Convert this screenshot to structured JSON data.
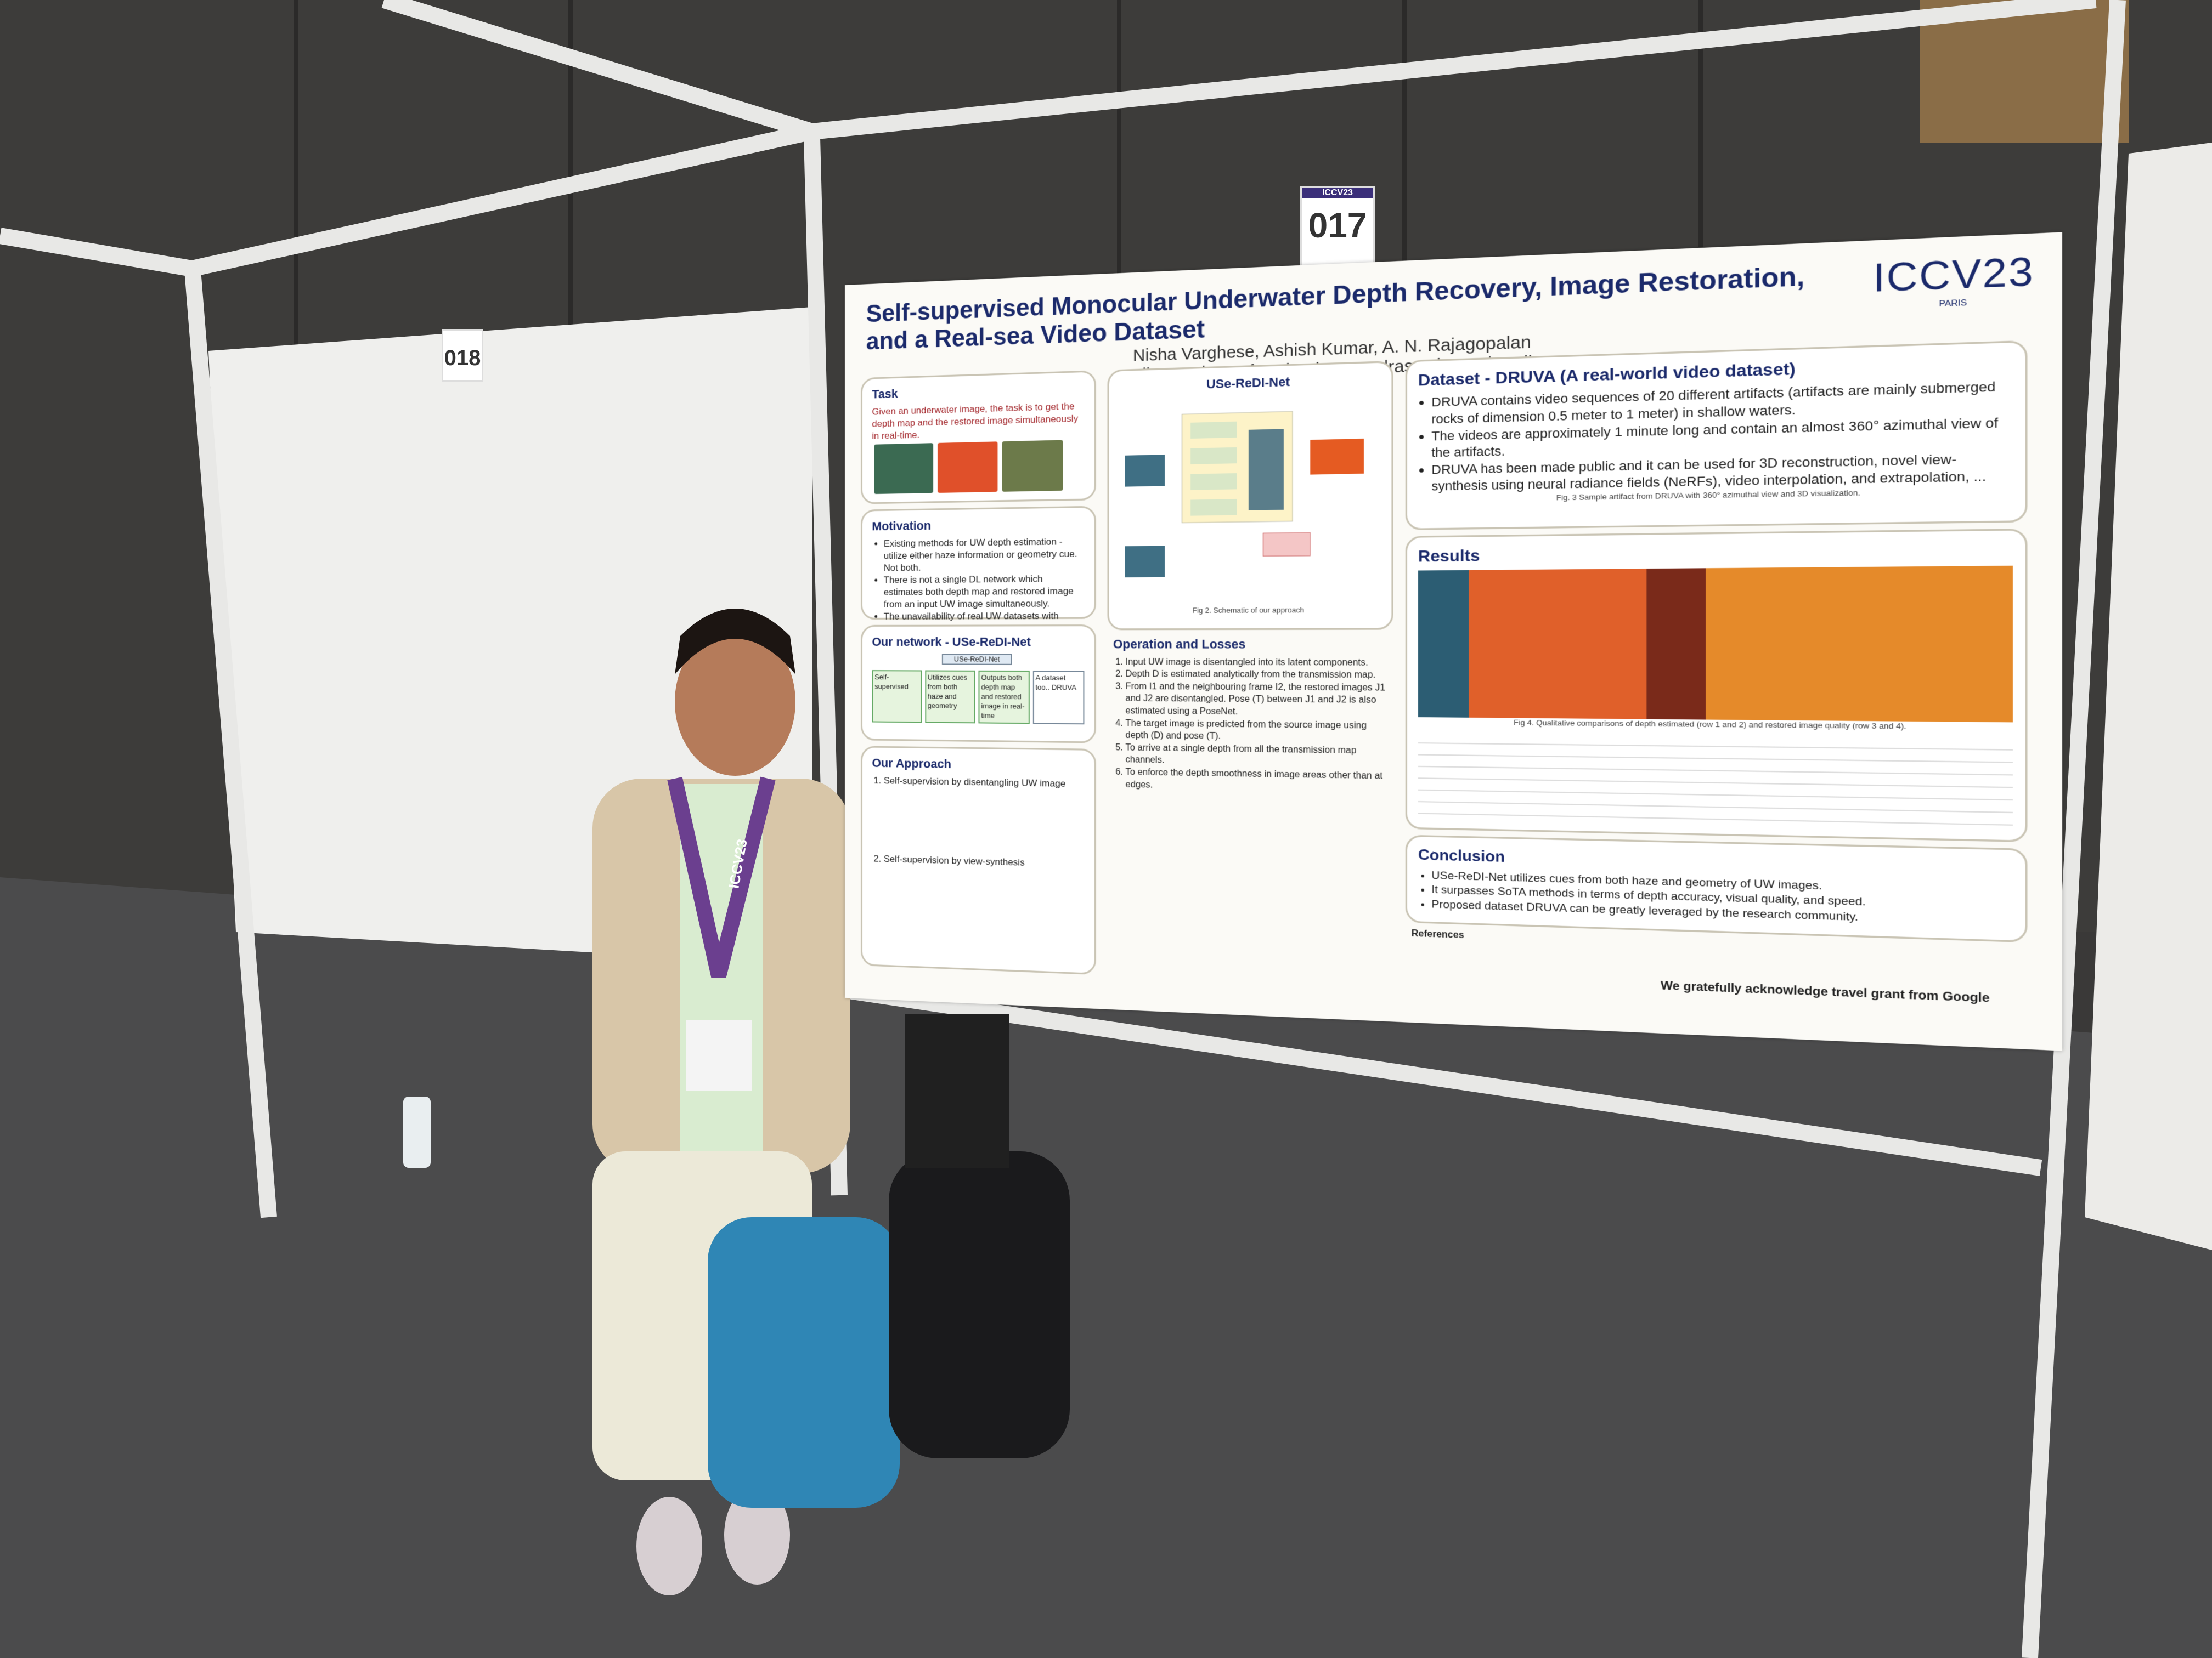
{
  "booths": {
    "left": "018",
    "right": "017",
    "tag": "ICCV23"
  },
  "poster": {
    "title": "Self-supervised Monocular Underwater Depth Recovery, Image Restoration, and a Real-sea Video Dataset",
    "authors": "Nisha Varghese, Ashish Kumar, A. N. Rajagopalan",
    "affiliation": "Indian Institute of Technology Madras, Chennai, India",
    "conference": "ICCV23",
    "city": "PARIS",
    "task": {
      "heading": "Task",
      "text": "Given an underwater image, the task is to get the depth map and the restored image simultaneously in real-time."
    },
    "motivation": {
      "heading": "Motivation",
      "items": [
        "Existing methods for UW depth estimation - utilize either haze information or geometry cue. Not both.",
        "There is not a single DL network which estimates both depth map and restored image from an input UW image simultaneously.",
        "The unavailability of real UW datasets with actual ground truth continues to pose challenges for supervised learning."
      ]
    },
    "network": {
      "heading": "Our network - USe-ReDI-Net",
      "nodes": [
        "USe-ReDI-Net",
        "Self-supervised",
        "Utilizes cues from both haze and geometry",
        "Outputs both depth map and restored image in real-time",
        "A dataset too.. DRUVA"
      ]
    },
    "approach": {
      "heading": "Our Approach",
      "items": [
        "Self-supervision by disentangling UW image",
        "Self-supervision by view-synthesis"
      ]
    },
    "diagram": {
      "heading": "USe-ReDI-Net",
      "caption": "Fig 2. Schematic of our approach"
    },
    "operation": {
      "heading": "Operation and Losses",
      "items": [
        "Input UW image is disentangled into its latent components.",
        "Depth D is estimated analytically from the transmission map.",
        "From I1 and the neighbouring frame I2, the restored images J1 and J2 are disentangled. Pose (T) between J1 and J2 is also estimated using a PoseNet.",
        "The target image is predicted from the source image using depth (D) and pose (T).",
        "To arrive at a single depth from all the transmission map channels.",
        "To enforce the depth smoothness in image areas other than at edges."
      ]
    },
    "dataset": {
      "heading": "Dataset - DRUVA (A real-world video dataset)",
      "items": [
        "DRUVA contains video sequences of 20 different artifacts (artifacts are mainly submerged rocks of dimension 0.5 meter to 1 meter) in shallow waters.",
        "The videos are approximately 1 minute long and contain an almost 360° azimuthal view of the artifacts.",
        "DRUVA has been made public and it can be used for 3D reconstruction, novel view-synthesis using neural radiance fields (NeRFs), video interpolation, and extrapolation, ..."
      ],
      "caption": "Fig. 3 Sample artifact from DRUVA with 360° azimuthal view and 3D visualization."
    },
    "results": {
      "heading": "Results",
      "caption": "Fig 4. Qualitative comparisons of depth estimated (row 1 and 2) and restored image quality (row 3 and 4)."
    },
    "conclusion": {
      "heading": "Conclusion",
      "items": [
        "USe-ReDI-Net utilizes cues from both haze and geometry of UW images.",
        "It surpasses SoTA methods in terms of depth accuracy, visual quality, and speed.",
        "Proposed dataset DRUVA can be greatly leveraged by the research community."
      ]
    },
    "references": "References",
    "acknowledgement": "We gratefully acknowledge travel grant from Google"
  },
  "lanyard": "ICCV23"
}
